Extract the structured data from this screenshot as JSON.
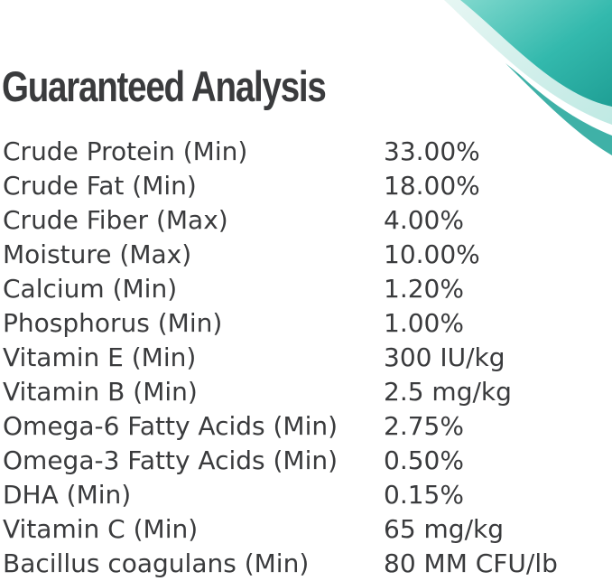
{
  "title": "Guaranteed Analysis",
  "colors": {
    "text": "#3a3b3d",
    "accent_teal": "#2fb8ab",
    "accent_light": "#bfe9e3"
  },
  "rows": [
    {
      "name": "Crude Protein (Min)",
      "value": "33.00%"
    },
    {
      "name": "Crude Fat (Min)",
      "value": "18.00%"
    },
    {
      "name": "Crude Fiber (Max)",
      "value": "4.00%"
    },
    {
      "name": "Moisture (Max)",
      "value": "10.00%"
    },
    {
      "name": "Calcium (Min)",
      "value": "1.20%"
    },
    {
      "name": "Phosphorus (Min)",
      "value": "1.00%"
    },
    {
      "name": "Vitamin E (Min)",
      "value": "300 IU/kg"
    },
    {
      "name": "Vitamin B (Min)",
      "value": "2.5 mg/kg"
    },
    {
      "name": "Omega-6 Fatty Acids (Min)",
      "value": "2.75%"
    },
    {
      "name": "Omega-3 Fatty Acids (Min)",
      "value": "0.50%"
    },
    {
      "name": "DHA (Min)",
      "value": "0.15%"
    },
    {
      "name": "Vitamin C (Min)",
      "value": "65 mg/kg"
    },
    {
      "name": "Bacillus coagulans (Min)",
      "value": "80 MM CFU/lb"
    }
  ]
}
